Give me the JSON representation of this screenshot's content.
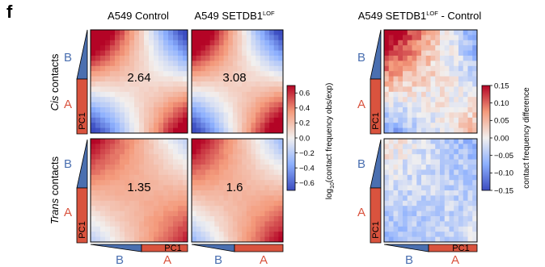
{
  "panel_label": "f",
  "column_titles": {
    "control": "A549 Control",
    "setdb1_prefix": "A549 SETDB1",
    "setdb1_sup": "LOF",
    "diff_prefix": "A549 SETDB1",
    "diff_sup": "LOF",
    "diff_suffix": " - Control"
  },
  "row_titles": {
    "cis_italic": "Cis",
    "cis_rest": " contacts",
    "trans_italic": "Trans",
    "trans_rest": " contacts"
  },
  "compartments": {
    "b": "B",
    "a": "A",
    "pc1": "PC1"
  },
  "chart_data": [
    {
      "type": "heatmap",
      "group": "log-obs-exp",
      "colorbar_label_prefix": "log",
      "colorbar_label_sub": "10",
      "colorbar_label_suffix": "(contact frequency obs/exp)",
      "colorbar_range": [
        -0.7,
        0.7
      ],
      "colorbar_ticks": [
        "0.6",
        "0.4",
        "0.2",
        "0.0",
        "−0.2",
        "−0.4",
        "−0.6"
      ],
      "colorbar_tick_values": [
        0.6,
        0.4,
        0.2,
        0.0,
        -0.2,
        -0.4,
        -0.6
      ],
      "panels": [
        {
          "row": "cis",
          "sample": "A549 Control",
          "compartment_strength": "2.64",
          "bb_level": 0.7,
          "aa_level": 0.55,
          "ab_level": -0.7
        },
        {
          "row": "cis",
          "sample": "A549 SETDB1 LOF",
          "compartment_strength": "3.08",
          "bb_level": 0.7,
          "aa_level": 0.6,
          "ab_level": -0.7
        },
        {
          "row": "trans",
          "sample": "A549 Control",
          "compartment_strength": "1.35",
          "bb_level": 0.45,
          "aa_level": 0.4,
          "ab_level": -0.15
        },
        {
          "row": "trans",
          "sample": "A549 SETDB1 LOF",
          "compartment_strength": "1.6",
          "bb_level": 0.5,
          "aa_level": 0.45,
          "ab_level": -0.25
        }
      ]
    },
    {
      "type": "heatmap",
      "group": "difference",
      "colorbar_label": "contact frequency difference",
      "colorbar_range": [
        -0.15,
        0.15
      ],
      "colorbar_ticks": [
        "0.15",
        "0.10",
        "0.05",
        "0.00",
        "−0.05",
        "−0.10",
        "−0.15"
      ],
      "colorbar_tick_values": [
        0.15,
        0.1,
        0.05,
        0.0,
        -0.05,
        -0.1,
        -0.15
      ],
      "panels": [
        {
          "row": "cis",
          "sample": "A549 SETDB1 LOF - Control",
          "bb_level": 0.12,
          "aa_level": 0.03,
          "ab_level": -0.08
        },
        {
          "row": "trans",
          "sample": "A549 SETDB1 LOF - Control",
          "bb_level": 0.01,
          "aa_level": -0.01,
          "ab_level": -0.06
        }
      ]
    }
  ]
}
